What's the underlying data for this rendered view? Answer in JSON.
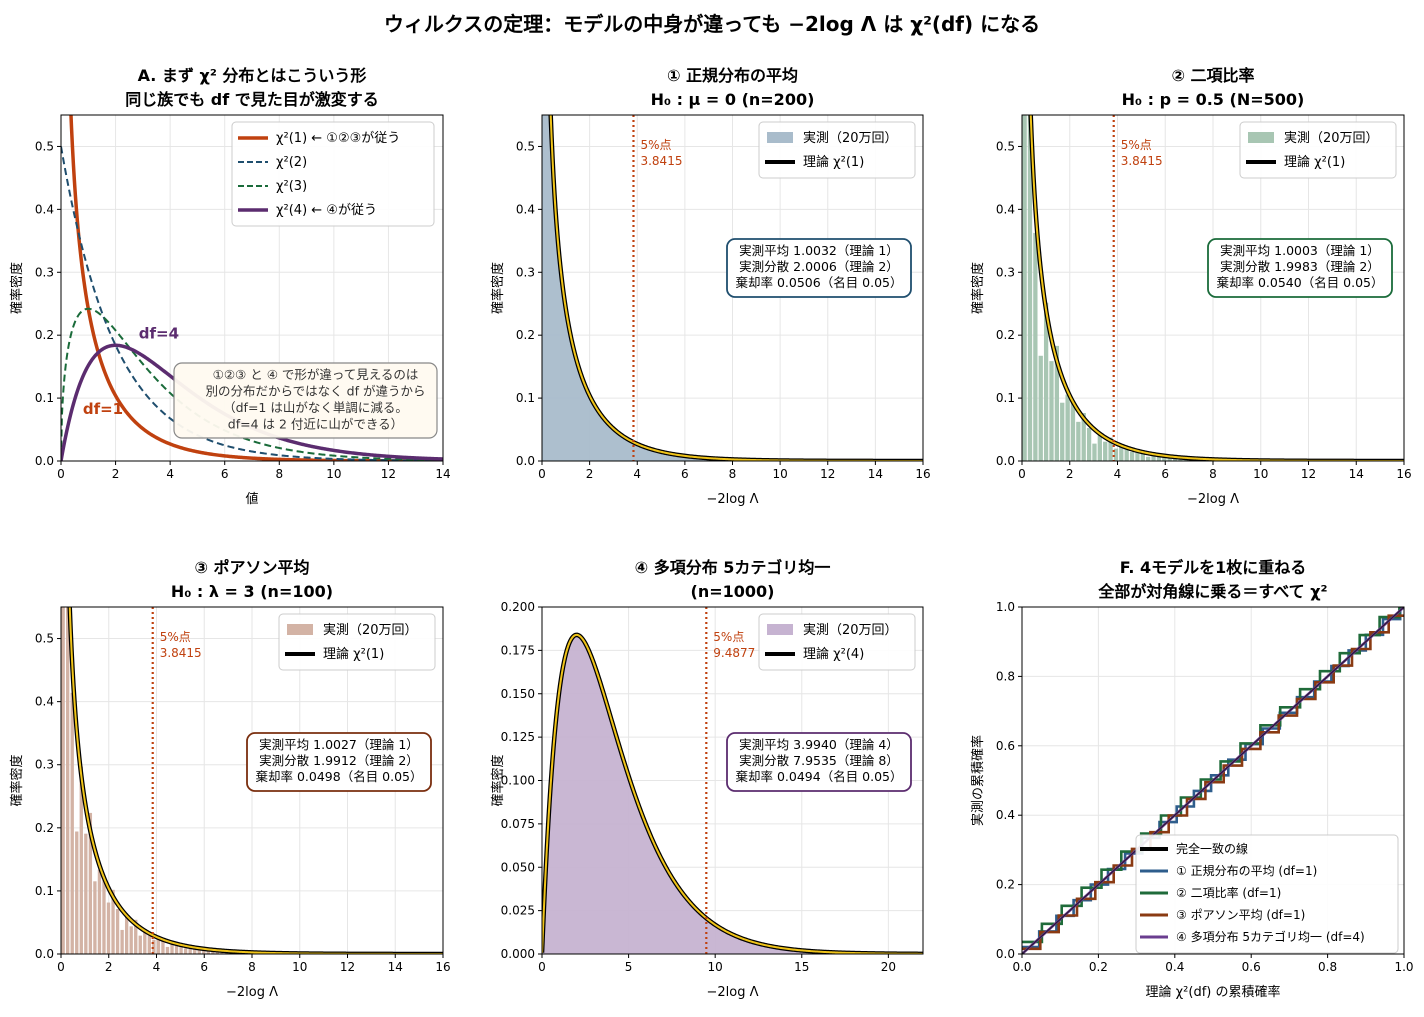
{
  "figure": {
    "title_main": "ウィルクスの定理：モデルの中身が違っても −2log Λ は χ²(df) になる"
  },
  "colors": {
    "df1": "#c0410f",
    "df2": "#1f4e6e",
    "df3": "#1a6b3a",
    "df4": "#5b2c6f",
    "norm_fill": "#a9bccb",
    "binom_fill": "#a8c6b3",
    "pois_fill": "#d3b3a5",
    "multi_fill": "#c6b3d1",
    "theory_outer": "#000000",
    "theory_inner": "#f0c419",
    "cut": "#c0410f",
    "norm_cdf": "#2e5d8c",
    "binom_cdf": "#1f6b3a",
    "pois_cdf": "#8a3a12",
    "multi_cdf": "#6a3d8f"
  },
  "chart_data": [
    {
      "id": "A",
      "type": "line",
      "title": [
        "A. まず χ² 分布とはこういう形",
        "同じ族でも df で見た目が激変する"
      ],
      "xlabel": "値",
      "ylabel": "確率密度",
      "xlim": [
        0,
        14
      ],
      "ylim": [
        0,
        0.55
      ],
      "xticks": [
        "0",
        "2",
        "4",
        "6",
        "8",
        "10",
        "12",
        "14"
      ],
      "yticks": [
        "0.0",
        "0.1",
        "0.2",
        "0.3",
        "0.4",
        "0.5"
      ],
      "grid": true,
      "legend_position": "upper right",
      "series": [
        {
          "name": "χ²(1) ← ①②③が従う",
          "df": 1,
          "style": "solid-thick"
        },
        {
          "name": "χ²(2)",
          "df": 2,
          "style": "dashed"
        },
        {
          "name": "χ²(3)",
          "df": 3,
          "style": "dashed"
        },
        {
          "name": "χ²(4) ← ④が従う",
          "df": 4,
          "style": "solid-thick"
        }
      ],
      "annotations": {
        "df1_label": "df=1",
        "df4_label": "df=4",
        "note": [
          "①②③ と ④ で形が違って見えるのは",
          "別の分布だからではなく df が違うから",
          "（df=1 は山がなく単調に減る。",
          "df=4 は 2 付近に山ができる）"
        ]
      }
    },
    {
      "id": "1",
      "type": "histogram",
      "title": [
        "① 正規分布の平均",
        "H₀ : μ = 0 (n=200)"
      ],
      "xlabel": "−2log Λ",
      "ylabel": "確率密度",
      "xlim": [
        0,
        16
      ],
      "ylim": [
        0,
        0.55
      ],
      "xticks": [
        "0",
        "2",
        "4",
        "6",
        "8",
        "10",
        "12",
        "14",
        "16"
      ],
      "yticks": [
        "0.0",
        "0.1",
        "0.2",
        "0.3",
        "0.4",
        "0.5"
      ],
      "df": 1,
      "legend": [
        "実測（20万回）",
        "理論 χ²(1)"
      ],
      "cutoff": {
        "label": "5%点",
        "value": 3.8415,
        "text": "3.8415"
      },
      "stats": [
        "実測平均 1.0032（理論 1）",
        "実測分散 2.0006（理論 2）",
        "棄却率 0.0506（名目 0.05）"
      ]
    },
    {
      "id": "2",
      "type": "histogram",
      "title": [
        "② 二項比率",
        "H₀ : p = 0.5 (N=500)"
      ],
      "xlabel": "−2log Λ",
      "ylabel": "確率密度",
      "xlim": [
        0,
        16
      ],
      "ylim": [
        0,
        0.55
      ],
      "xticks": [
        "0",
        "2",
        "4",
        "6",
        "8",
        "10",
        "12",
        "14",
        "16"
      ],
      "yticks": [
        "0.0",
        "0.1",
        "0.2",
        "0.3",
        "0.4",
        "0.5"
      ],
      "df": 1,
      "legend": [
        "実測（20万回）",
        "理論 χ²(1)"
      ],
      "cutoff": {
        "label": "5%点",
        "value": 3.8415,
        "text": "3.8415"
      },
      "stats": [
        "実測平均 1.0003（理論 1）",
        "実測分散 1.9983（理論 2）",
        "棄却率 0.0540（名目 0.05）"
      ]
    },
    {
      "id": "3",
      "type": "histogram",
      "title": [
        "③ ポアソン平均",
        "H₀ : λ = 3 (n=100)"
      ],
      "xlabel": "−2log Λ",
      "ylabel": "確率密度",
      "xlim": [
        0,
        16
      ],
      "ylim": [
        0,
        0.55
      ],
      "xticks": [
        "0",
        "2",
        "4",
        "6",
        "8",
        "10",
        "12",
        "14",
        "16"
      ],
      "yticks": [
        "0.0",
        "0.1",
        "0.2",
        "0.3",
        "0.4",
        "0.5"
      ],
      "df": 1,
      "legend": [
        "実測（20万回）",
        "理論 χ²(1)"
      ],
      "cutoff": {
        "label": "5%点",
        "value": 3.8415,
        "text": "3.8415"
      },
      "stats": [
        "実測平均 1.0027（理論 1）",
        "実測分散 1.9912（理論 2）",
        "棄却率 0.0498（名目 0.05）"
      ]
    },
    {
      "id": "4",
      "type": "histogram",
      "title": [
        "④ 多項分布 5カテゴリ均一",
        "(n=1000)"
      ],
      "xlabel": "−2log Λ",
      "ylabel": "確率密度",
      "xlim": [
        0,
        22
      ],
      "ylim": [
        0,
        0.2
      ],
      "xticks": [
        "0",
        "5",
        "10",
        "15",
        "20"
      ],
      "yticks": [
        "0.000",
        "0.025",
        "0.050",
        "0.075",
        "0.100",
        "0.125",
        "0.150",
        "0.175",
        "0.200"
      ],
      "df": 4,
      "legend": [
        "実測（20万回）",
        "理論 χ²(4)"
      ],
      "cutoff": {
        "label": "5%点",
        "value": 9.4877,
        "text": "9.4877"
      },
      "stats": [
        "実測平均 3.9940（理論 4）",
        "実測分散 7.9535（理論 8）",
        "棄却率 0.0494（名目 0.05）"
      ]
    },
    {
      "id": "F",
      "type": "line",
      "title": [
        "F. 4モデルを1枚に重ねる",
        "全部が対角線に乗る＝すべて χ²"
      ],
      "xlabel": "理論 χ²(df) の累積確率",
      "ylabel": "実測の累積確率",
      "xlim": [
        0,
        1
      ],
      "ylim": [
        0,
        1
      ],
      "xticks": [
        "0.0",
        "0.2",
        "0.4",
        "0.6",
        "0.8",
        "1.0"
      ],
      "yticks": [
        "0.0",
        "0.2",
        "0.4",
        "0.6",
        "0.8",
        "1.0"
      ],
      "legend_position": "lower right",
      "series": [
        {
          "name": "完全一致の線"
        },
        {
          "name": "① 正規分布の平均 (df=1)"
        },
        {
          "name": "② 二項比率 (df=1)"
        },
        {
          "name": "③ ポアソン平均 (df=1)"
        },
        {
          "name": "④ 多項分布 5カテゴリ均一 (df=4)"
        }
      ]
    }
  ]
}
